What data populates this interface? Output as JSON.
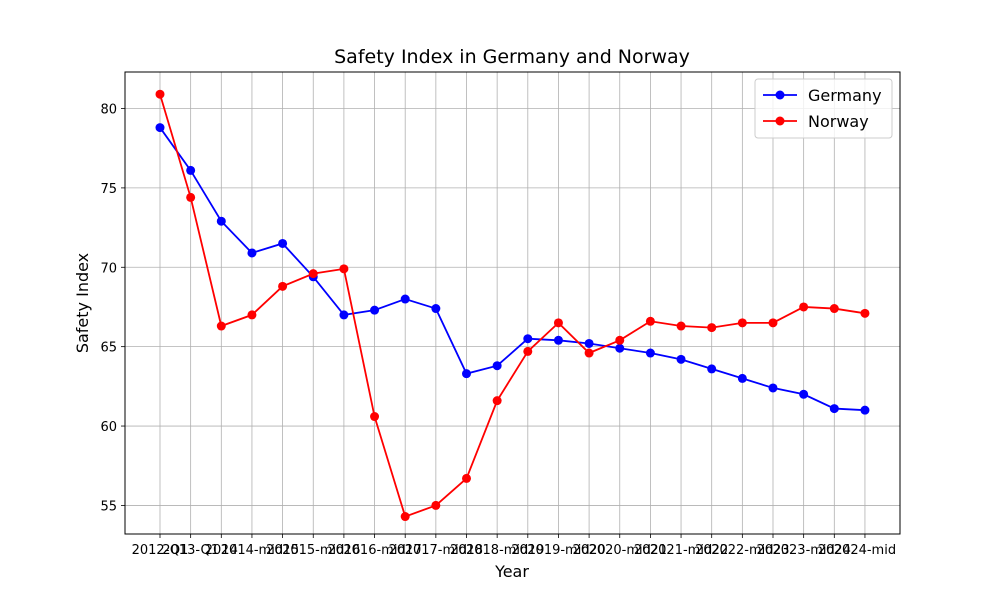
{
  "chart_data": {
    "type": "line",
    "title": "Safety Index in Germany and Norway",
    "xlabel": "Year",
    "ylabel": "Safety Index",
    "categories": [
      "2012-Q1",
      "2013-Q1",
      "2014",
      "2014-mid",
      "2015",
      "2015-mid",
      "2016",
      "2016-mid",
      "2017",
      "2017-mid",
      "2018",
      "2018-mid",
      "2019",
      "2019-mid",
      "2020",
      "2020-mid",
      "2021",
      "2021-mid",
      "2022",
      "2022-mid",
      "2023",
      "2023-mid",
      "2024",
      "2024-mid"
    ],
    "ylim": [
      53.2,
      82.3
    ],
    "yticks": [
      55,
      60,
      65,
      70,
      75,
      80
    ],
    "grid": true,
    "legend_position": "top-right",
    "series": [
      {
        "name": "Germany",
        "color": "#0000ff",
        "values": [
          78.8,
          76.1,
          72.9,
          70.9,
          71.5,
          69.4,
          67.0,
          67.3,
          68.0,
          67.4,
          63.3,
          63.8,
          65.5,
          65.4,
          65.2,
          64.9,
          64.6,
          64.2,
          63.6,
          63.0,
          62.4,
          62.0,
          61.1,
          61.0
        ]
      },
      {
        "name": "Norway",
        "color": "#ff0000",
        "values": [
          80.9,
          74.4,
          66.3,
          67.0,
          68.8,
          69.6,
          69.9,
          60.6,
          54.3,
          55.0,
          56.7,
          61.6,
          64.7,
          66.5,
          64.6,
          65.4,
          66.6,
          66.3,
          66.2,
          66.5,
          66.5,
          67.5,
          67.4,
          67.1
        ]
      }
    ]
  }
}
